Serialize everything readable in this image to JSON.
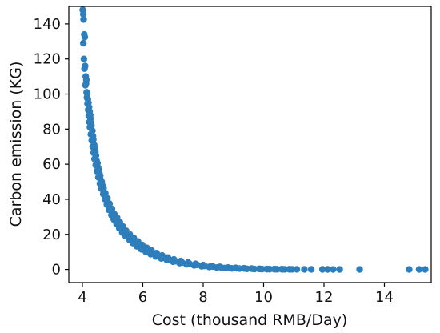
{
  "chart_data": {
    "type": "scatter",
    "title": "",
    "xlabel": "Cost (thousand RMB/Day)",
    "ylabel": "Carbon emission  (KG)",
    "xlim": [
      3.55,
      15.55
    ],
    "ylim": [
      -7.5,
      150
    ],
    "x_ticks": [
      4,
      6,
      8,
      10,
      12,
      14
    ],
    "y_ticks": [
      0,
      20,
      40,
      60,
      80,
      100,
      120,
      140
    ],
    "x_tick_labels": [
      "4",
      "6",
      "8",
      "10",
      "12",
      "14"
    ],
    "y_tick_labels": [
      "0",
      "20",
      "40",
      "60",
      "80",
      "100",
      "120",
      "140"
    ],
    "grid": false,
    "legend": "none",
    "series": [
      {
        "color": "#2f7ebc",
        "points": [
          [
            4.01,
            148.0
          ],
          [
            4.03,
            145.5
          ],
          [
            4.04,
            142.5
          ],
          [
            4.06,
            134.0
          ],
          [
            4.03,
            129.0
          ],
          [
            4.08,
            132.5
          ],
          [
            4.05,
            120.0
          ],
          [
            4.09,
            116.0
          ],
          [
            4.07,
            114.5
          ],
          [
            4.11,
            110.0
          ],
          [
            4.12,
            106.0
          ],
          [
            4.14,
            101.0
          ],
          [
            4.15,
            98.0
          ],
          [
            4.17,
            94.5
          ],
          [
            4.19,
            91.0
          ],
          [
            4.21,
            87.5
          ],
          [
            4.23,
            84.0
          ],
          [
            4.25,
            81.0
          ],
          [
            4.28,
            77.0
          ],
          [
            4.31,
            73.5
          ],
          [
            4.34,
            70.0
          ],
          [
            4.37,
            66.5
          ],
          [
            4.4,
            63.0
          ],
          [
            4.44,
            59.5
          ],
          [
            4.48,
            56.0
          ],
          [
            4.53,
            52.5
          ],
          [
            4.58,
            49.0
          ],
          [
            4.63,
            46.0
          ],
          [
            4.69,
            43.0
          ],
          [
            4.75,
            40.0
          ],
          [
            4.81,
            37.0
          ],
          [
            4.88,
            34.0
          ],
          [
            4.96,
            31.0
          ],
          [
            5.04,
            28.5
          ],
          [
            5.13,
            26.0
          ],
          [
            5.22,
            23.5
          ],
          [
            5.32,
            21.0
          ],
          [
            5.43,
            19.0
          ],
          [
            5.55,
            17.0
          ],
          [
            5.67,
            15.0
          ],
          [
            5.8,
            13.2
          ],
          [
            5.95,
            11.5
          ],
          [
            6.1,
            10.0
          ],
          [
            6.26,
            8.7
          ],
          [
            6.43,
            7.4
          ],
          [
            6.61,
            6.3
          ],
          [
            6.8,
            5.3
          ],
          [
            7.0,
            4.4
          ],
          [
            7.22,
            3.6
          ],
          [
            7.45,
            2.9
          ],
          [
            7.7,
            2.3
          ],
          [
            7.95,
            1.8
          ],
          [
            8.2,
            1.4
          ],
          [
            8.45,
            1.1
          ],
          [
            8.7,
            0.8
          ],
          [
            8.95,
            0.6
          ],
          [
            9.2,
            0.5
          ],
          [
            9.45,
            0.35
          ],
          [
            9.7,
            0.25
          ],
          [
            9.95,
            0.2
          ],
          [
            10.2,
            0.15
          ],
          [
            10.45,
            0.1
          ],
          [
            10.7,
            0.08
          ],
          [
            10.95,
            0.05
          ],
          [
            4.1,
            105.0
          ],
          [
            4.13,
            108.0
          ],
          [
            4.16,
            100.0
          ],
          [
            4.2,
            95.0
          ],
          [
            4.24,
            90.0
          ],
          [
            4.27,
            86.0
          ],
          [
            4.3,
            82.0
          ],
          [
            4.35,
            76.0
          ],
          [
            4.39,
            71.0
          ],
          [
            4.43,
            67.0
          ],
          [
            4.47,
            62.0
          ],
          [
            4.52,
            58.0
          ],
          [
            4.56,
            55.0
          ],
          [
            4.61,
            51.0
          ],
          [
            4.66,
            48.0
          ],
          [
            4.72,
            44.0
          ],
          [
            4.78,
            41.0
          ],
          [
            4.85,
            38.0
          ],
          [
            4.92,
            35.0
          ],
          [
            5.0,
            32.0
          ],
          [
            5.08,
            29.0
          ],
          [
            5.18,
            26.5
          ],
          [
            5.27,
            24.0
          ],
          [
            5.37,
            21.5
          ],
          [
            5.48,
            19.5
          ],
          [
            5.6,
            17.5
          ],
          [
            5.72,
            15.5
          ],
          [
            5.86,
            13.8
          ],
          [
            6.0,
            12.0
          ],
          [
            6.15,
            10.5
          ],
          [
            6.32,
            9.0
          ],
          [
            6.5,
            7.8
          ],
          [
            6.68,
            6.6
          ],
          [
            6.88,
            5.6
          ],
          [
            7.08,
            4.7
          ],
          [
            7.3,
            3.9
          ],
          [
            7.55,
            3.2
          ],
          [
            7.8,
            2.6
          ],
          [
            8.05,
            2.0
          ],
          [
            8.32,
            1.6
          ],
          [
            8.58,
            1.2
          ],
          [
            8.85,
            0.9
          ],
          [
            9.1,
            0.7
          ],
          [
            9.38,
            0.5
          ],
          [
            9.62,
            0.4
          ],
          [
            9.88,
            0.3
          ],
          [
            10.12,
            0.2
          ],
          [
            10.38,
            0.15
          ],
          [
            10.62,
            0.1
          ],
          [
            10.88,
            0.08
          ],
          [
            4.18,
            97.0
          ],
          [
            4.22,
            92.5
          ],
          [
            4.26,
            88.0
          ],
          [
            4.29,
            83.5
          ],
          [
            4.33,
            79.0
          ],
          [
            4.36,
            74.0
          ],
          [
            4.41,
            69.5
          ],
          [
            4.45,
            65.0
          ],
          [
            4.5,
            60.5
          ],
          [
            4.54,
            57.0
          ],
          [
            4.59,
            53.5
          ],
          [
            4.64,
            50.0
          ],
          [
            4.7,
            46.5
          ],
          [
            4.76,
            43.5
          ],
          [
            4.83,
            40.5
          ],
          [
            4.9,
            37.5
          ],
          [
            4.98,
            34.5
          ],
          [
            5.06,
            31.5
          ],
          [
            5.15,
            29.5
          ],
          [
            5.24,
            27.0
          ],
          [
            5.34,
            24.5
          ],
          [
            5.45,
            22.0
          ],
          [
            5.57,
            20.0
          ],
          [
            5.7,
            18.0
          ],
          [
            5.84,
            16.0
          ],
          [
            5.98,
            14.0
          ],
          [
            6.13,
            12.3
          ],
          [
            6.29,
            10.8
          ],
          [
            6.46,
            9.3
          ],
          [
            6.64,
            8.0
          ],
          [
            6.83,
            6.8
          ],
          [
            7.03,
            5.7
          ],
          [
            7.26,
            4.8
          ],
          [
            7.5,
            4.0
          ],
          [
            7.75,
            3.2
          ],
          [
            8.0,
            2.5
          ],
          [
            8.28,
            2.0
          ],
          [
            8.55,
            1.5
          ],
          [
            8.82,
            1.1
          ],
          [
            9.08,
            0.9
          ],
          [
            9.35,
            0.7
          ],
          [
            9.6,
            0.5
          ],
          [
            9.85,
            0.35
          ],
          [
            10.1,
            0.25
          ],
          [
            10.35,
            0.2
          ],
          [
            10.6,
            0.15
          ],
          [
            10.85,
            0.1
          ],
          [
            11.1,
            0.06
          ],
          [
            11.35,
            0.05
          ],
          [
            11.58,
            0.04
          ],
          [
            11.95,
            0.03
          ],
          [
            12.12,
            0.03
          ],
          [
            12.3,
            0.02
          ],
          [
            12.52,
            0.02
          ],
          [
            13.18,
            0.02
          ],
          [
            14.82,
            0.01
          ],
          [
            15.15,
            0.01
          ],
          [
            15.35,
            0.01
          ]
        ]
      }
    ]
  }
}
